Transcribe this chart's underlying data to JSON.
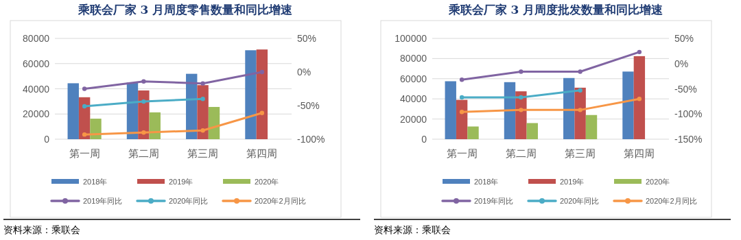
{
  "chart_data": [
    {
      "type": "bar",
      "title": "乘联会厂家 3 月周度零售数量和同比增速",
      "categories": [
        "第一周",
        "第二周",
        "第三周",
        "第四周"
      ],
      "series": [
        {
          "name": "2018年",
          "color": "#4f81bd",
          "values": [
            44400,
            45000,
            51900,
            70600
          ]
        },
        {
          "name": "2019年",
          "color": "#c0504d",
          "values": [
            33300,
            38700,
            42900,
            71200
          ]
        },
        {
          "name": "2020年",
          "color": "#9bbb59",
          "values": [
            16300,
            21300,
            25600,
            null
          ]
        },
        {
          "name": "2019年同比",
          "type": "line",
          "axis": "y2",
          "color": "#8064a2",
          "values": [
            -25,
            -14,
            -17,
            0
          ]
        },
        {
          "name": "2020年同比",
          "type": "line",
          "axis": "y2",
          "color": "#4bacc6",
          "values": [
            -51,
            -44,
            -40,
            null
          ]
        },
        {
          "name": "2020年2月同比",
          "type": "line",
          "axis": "y2",
          "color": "#f79646",
          "values": [
            -93,
            -90,
            -87,
            -61
          ]
        }
      ],
      "ylim": [
        0,
        80000
      ],
      "yticks": [
        0,
        20000,
        40000,
        60000,
        80000
      ],
      "y2lim": [
        -100,
        50
      ],
      "y2ticks": [
        {
          "value": -100,
          "label": "-100%"
        },
        {
          "value": -50,
          "label": "-50%"
        },
        {
          "value": 0,
          "label": "0%"
        },
        {
          "value": 50,
          "label": "50%"
        }
      ],
      "grid": "y",
      "legend": "bottom",
      "marker": "circle",
      "annotations": [
        "资料来源：乘联会"
      ]
    },
    {
      "type": "bar",
      "title": "乘联会厂家 3 月周度批发数量和同比增速",
      "categories": [
        "第一周",
        "第二周",
        "第三周",
        "第四周"
      ],
      "series": [
        {
          "name": "2018年",
          "color": "#4f81bd",
          "values": [
            57500,
            56600,
            60700,
            67100
          ]
        },
        {
          "name": "2019年",
          "color": "#c0504d",
          "values": [
            39000,
            47500,
            51100,
            82400
          ]
        },
        {
          "name": "2020年",
          "color": "#9bbb59",
          "values": [
            12600,
            16000,
            24000,
            null
          ]
        },
        {
          "name": "2019年同比",
          "type": "line",
          "axis": "y2",
          "color": "#8064a2",
          "values": [
            -32,
            -16,
            -16,
            23
          ]
        },
        {
          "name": "2020年同比",
          "type": "line",
          "axis": "y2",
          "color": "#4bacc6",
          "values": [
            -67,
            -67,
            -53,
            null
          ]
        },
        {
          "name": "2020年2月同比",
          "type": "line",
          "axis": "y2",
          "color": "#f79646",
          "values": [
            -96,
            -92,
            -92,
            -70
          ]
        }
      ],
      "ylim": [
        0,
        100000
      ],
      "yticks": [
        0,
        20000,
        40000,
        60000,
        80000,
        100000
      ],
      "y2lim": [
        -150,
        50
      ],
      "y2ticks": [
        {
          "value": -150,
          "label": "-150%"
        },
        {
          "value": -100,
          "label": "-100%"
        },
        {
          "value": -50,
          "label": "-50%"
        },
        {
          "value": 0,
          "label": "0%"
        },
        {
          "value": 50,
          "label": "50%"
        }
      ],
      "grid": "y",
      "legend": "bottom",
      "marker": "circle",
      "annotations": [
        "资料来源：乘联会"
      ]
    }
  ]
}
